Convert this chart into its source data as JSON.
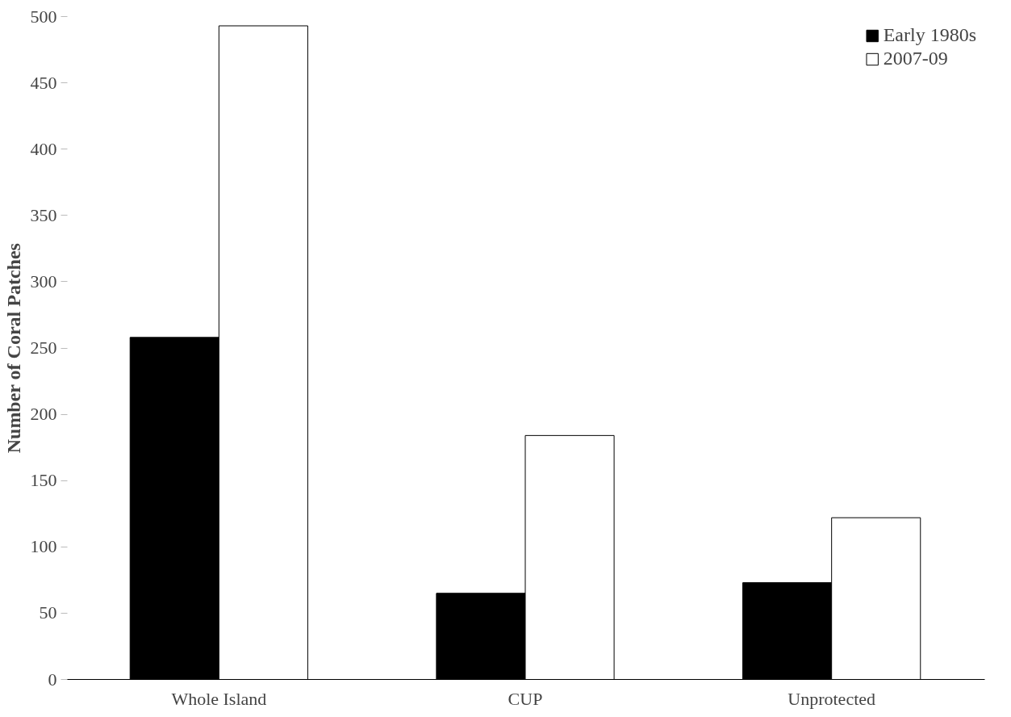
{
  "chart_data": {
    "type": "bar",
    "ylabel": "Number of Coral Patches",
    "categories": [
      "Whole Island",
      "CUP",
      "Unprotected"
    ],
    "series": [
      {
        "name": "Early 1980s",
        "color": "#000000",
        "values": [
          258,
          65,
          73
        ]
      },
      {
        "name": "2007-09",
        "color": "#ffffff",
        "values": [
          493,
          184,
          122
        ]
      }
    ],
    "ylim": [
      0,
      500
    ],
    "yticks": [
      0,
      50,
      100,
      150,
      200,
      250,
      300,
      350,
      400,
      450,
      500
    ],
    "grid": false,
    "legend": "top right"
  }
}
